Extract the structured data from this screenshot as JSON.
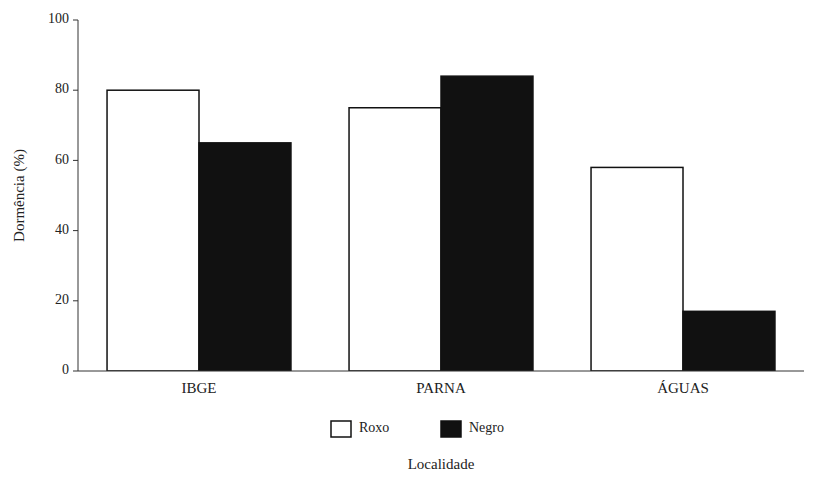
{
  "chart_data": {
    "type": "bar",
    "categories": [
      "IBGE",
      "PARNA",
      "ÁGUAS"
    ],
    "series": [
      {
        "name": "Roxo",
        "color": "#ffffff",
        "values": [
          80,
          75,
          58
        ]
      },
      {
        "name": "Negro",
        "color": "#111111",
        "values": [
          65,
          84,
          17
        ]
      }
    ],
    "xlabel": "Localidade",
    "ylabel": "Dormência (%)",
    "ylim": [
      0,
      100
    ],
    "yticks": [
      0,
      20,
      40,
      60,
      80,
      100
    ],
    "legend": "bottom",
    "grid": false
  }
}
